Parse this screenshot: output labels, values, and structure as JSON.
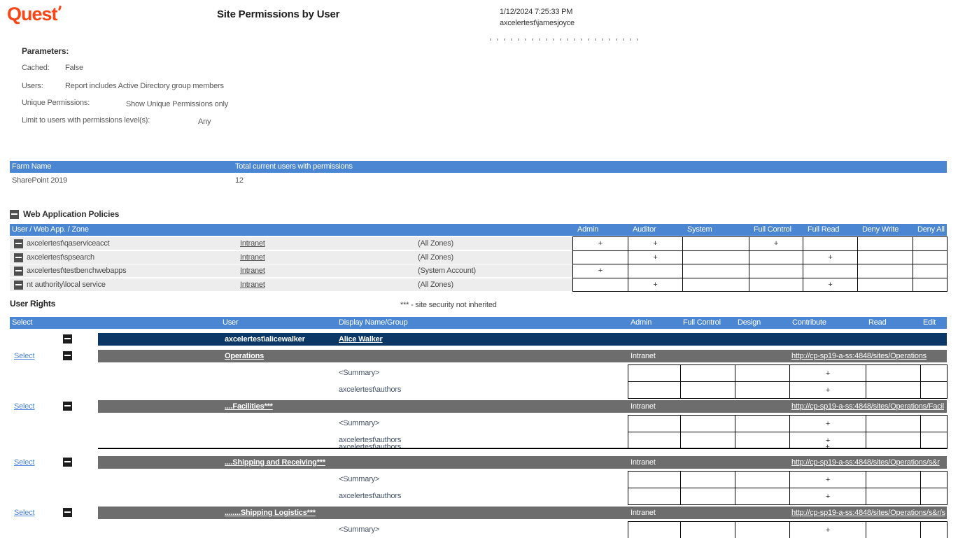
{
  "header": {
    "logo": "Quest",
    "title": "Site Permissions by User",
    "datetime": "1/12/2024 7:25:33 PM",
    "username": "axcelertest\\jamesjoyce"
  },
  "icons": {
    "collapse": "minus-square"
  },
  "colors": {
    "accent_blue_header": "#4a86d2",
    "navy_user_row": "#0a3765",
    "gray_site_row": "#6d6d6d",
    "light_row_band": "#ededed",
    "quest_orange": "#fa4616",
    "link_blue": "#4f86d8"
  },
  "parameters": {
    "heading": "Parameters:",
    "rows": [
      {
        "label": "Cached:",
        "value": "False"
      },
      {
        "label": "Users:",
        "value": "Report includes Active Directory group members"
      },
      {
        "label": "Unique Permissions:",
        "value": "Show Unique Permissions only"
      },
      {
        "label": "Limit to users with permissions level(s):",
        "value": "Any"
      }
    ]
  },
  "farm": {
    "headers": [
      "Farm Name",
      "Total current users with permissions"
    ],
    "rows": [
      [
        "SharePoint 2019",
        "12"
      ]
    ]
  },
  "web_app_policies": {
    "heading": "Web Application Policies",
    "header_label": "User / Web App. / Zone",
    "perm_columns": [
      "Admin",
      "Auditor",
      "System",
      "Full Control",
      "Full Read",
      "Deny Write",
      "Deny All"
    ],
    "rows": [
      {
        "user": "axcelertest\\qaserviceacct",
        "zone_link": "Intranet",
        "zone": "(All Zones)",
        "marks": [
          "+",
          "+",
          "",
          "+",
          "",
          "",
          ""
        ]
      },
      {
        "user": "axcelertest\\spsearch",
        "zone_link": "Intranet",
        "zone": "(All Zones)",
        "marks": [
          "",
          "+",
          "",
          "",
          "+",
          "",
          ""
        ]
      },
      {
        "user": "axcelertest\\testbenchwebapps",
        "zone_link": "Intranet",
        "zone": "(System Account)",
        "marks": [
          "+",
          "",
          "",
          "",
          "",
          "",
          ""
        ]
      },
      {
        "user": "nt authority\\local service",
        "zone_link": "Intranet",
        "zone": "(All Zones)",
        "marks": [
          "",
          "+",
          "",
          "",
          "+",
          "",
          ""
        ]
      }
    ]
  },
  "user_rights": {
    "heading": "User Rights",
    "note": "*** - site security not inherited",
    "header": {
      "select": "Select",
      "user": "User",
      "display": "Display Name/Group",
      "perm_columns": [
        "Admin",
        "Full Control",
        "Design",
        "Contribute",
        "Read",
        "Edit"
      ]
    },
    "user_row": {
      "user": "axcelertest\\alicewalker",
      "display_name": "Alice Walker"
    },
    "sites": [
      {
        "select": "Select",
        "name": "Operations",
        "zone": "Intranet",
        "url": "http://cp-sp19-a-ss:4848/sites/Operations",
        "artifact": false,
        "entries": [
          {
            "label": "<Summary>",
            "marks": [
              "",
              "",
              "",
              "+",
              "",
              ""
            ]
          },
          {
            "label": "axcelertest\\authors",
            "marks": [
              "",
              "",
              "",
              "+",
              "",
              ""
            ]
          }
        ]
      },
      {
        "select": "Select",
        "name": "....Facilities***",
        "zone": "Intranet",
        "url": "http://cp-sp19-a-ss:4848/sites/Operations/Facil",
        "artifact": true,
        "entries": [
          {
            "label": "<Summary>",
            "marks": [
              "",
              "",
              "",
              "+",
              "",
              ""
            ]
          },
          {
            "label": "axcelertest\\authors",
            "marks": [
              "",
              "",
              "",
              "+",
              "",
              ""
            ]
          }
        ]
      },
      {
        "select": "Select",
        "name": "....Shipping and Receiving***",
        "zone": "Intranet",
        "url": "http://cp-sp19-a-ss:4848/sites/Operations/s&r",
        "artifact": false,
        "entries": [
          {
            "label": "<Summary>",
            "marks": [
              "",
              "",
              "",
              "+",
              "",
              ""
            ]
          },
          {
            "label": "axcelertest\\authors",
            "marks": [
              "",
              "",
              "",
              "+",
              "",
              ""
            ]
          }
        ]
      },
      {
        "select": "Select",
        "name": "........Shipping Logistics***",
        "zone": "Intranet",
        "url": "http://cp-sp19-a-ss:4848/sites/Operations/s&r/s",
        "artifact": false,
        "entries": [
          {
            "label": "<Summary>",
            "marks": [
              "",
              "",
              "",
              "+",
              "",
              ""
            ]
          }
        ]
      }
    ]
  }
}
